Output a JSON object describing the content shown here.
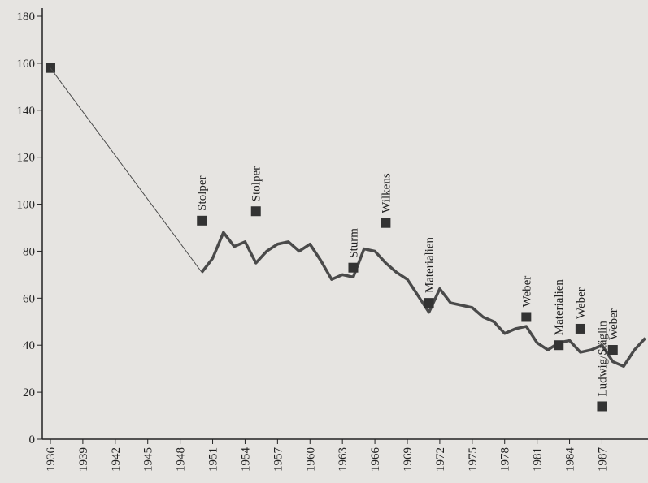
{
  "chart_data": {
    "type": "line",
    "x": [
      1936,
      1950,
      1951,
      1952,
      1953,
      1954,
      1955,
      1956,
      1957,
      1958,
      1959,
      1960,
      1961,
      1962,
      1963,
      1964,
      1965,
      1966,
      1967,
      1968,
      1969,
      1970,
      1971,
      1972,
      1973,
      1974,
      1975,
      1976,
      1977,
      1978,
      1979,
      1980,
      1981,
      1982,
      1983,
      1984,
      1985,
      1986,
      1987,
      1988,
      1989,
      1990,
      1991
    ],
    "values": [
      158,
      71,
      77,
      88,
      82,
      84,
      75,
      80,
      83,
      84,
      80,
      83,
      76,
      68,
      70,
      69,
      81,
      80,
      75,
      71,
      68,
      61,
      54,
      64,
      58,
      57,
      56,
      52,
      50,
      45,
      47,
      48,
      41,
      38,
      41,
      42,
      37,
      38,
      40,
      33,
      31,
      38,
      43
    ],
    "color": "#4a4a4a",
    "points": {
      "labels": [
        "Stolper",
        "Stolper",
        "Sturm",
        "Wilkens",
        "Materialien",
        "Weber",
        "Materialien",
        "Weber",
        "Ludwig/Stäglin",
        "Weber"
      ],
      "x": [
        1950,
        1955,
        1964,
        1967,
        1971,
        1980,
        1983,
        1985,
        1987,
        1988
      ],
      "values": [
        93,
        97,
        73,
        92,
        58,
        52,
        40,
        47,
        14,
        38
      ]
    },
    "xlim": [
      1935.25,
      1991.25
    ],
    "xticks": [
      1936,
      1939,
      1942,
      1945,
      1948,
      1951,
      1954,
      1957,
      1960,
      1963,
      1966,
      1969,
      1972,
      1975,
      1978,
      1981,
      1984,
      1987
    ],
    "ylim": [
      0,
      180
    ],
    "yticks": [
      0,
      20,
      40,
      60,
      80,
      100,
      120,
      140,
      160,
      180
    ]
  }
}
